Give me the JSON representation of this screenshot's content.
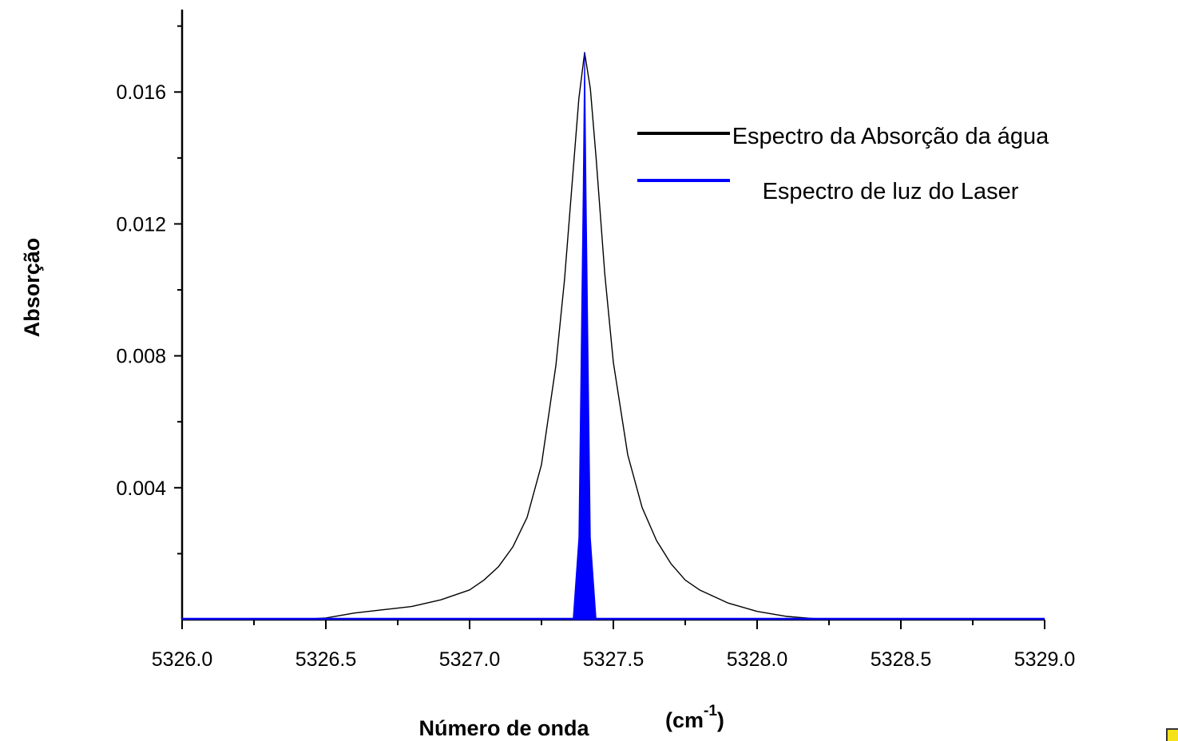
{
  "chart_data": {
    "type": "line",
    "title": "",
    "xlabel": "Número de onda",
    "xlabel_unit": "(cm",
    "xlabel_unit_sup": "-1",
    "xlabel_unit_close": ")",
    "ylabel": "Absorção",
    "xlim": [
      5326.0,
      5329.0
    ],
    "ylim": [
      0.0,
      0.0185
    ],
    "x_ticks": [
      {
        "value": 5326.0,
        "label": "5326.0"
      },
      {
        "value": 5326.5,
        "label": "5326.5"
      },
      {
        "value": 5327.0,
        "label": "5327.0"
      },
      {
        "value": 5327.5,
        "label": "5327.5"
      },
      {
        "value": 5328.0,
        "label": "5328.0"
      },
      {
        "value": 5328.5,
        "label": "5328.5"
      },
      {
        "value": 5329.0,
        "label": "5329.0"
      }
    ],
    "y_ticks": [
      {
        "value": 0.004,
        "label": "0.004"
      },
      {
        "value": 0.008,
        "label": "0.008"
      },
      {
        "value": 0.012,
        "label": "0.012"
      },
      {
        "value": 0.016,
        "label": "0.016"
      }
    ],
    "grid": false,
    "legend_position": "top-right",
    "series": [
      {
        "name": "Espectro da Absorção da água",
        "color": "#000000",
        "style": "line",
        "x": [
          5326.0,
          5326.2,
          5326.4,
          5326.5,
          5326.6,
          5326.7,
          5326.8,
          5326.9,
          5327.0,
          5327.05,
          5327.1,
          5327.15,
          5327.2,
          5327.25,
          5327.3,
          5327.33,
          5327.36,
          5327.38,
          5327.4,
          5327.42,
          5327.44,
          5327.47,
          5327.5,
          5327.55,
          5327.6,
          5327.65,
          5327.7,
          5327.75,
          5327.8,
          5327.85,
          5327.9,
          5328.0,
          5328.1,
          5328.2,
          5328.3,
          5328.5,
          5329.0
        ],
        "y": [
          0.0,
          0.0,
          0.0,
          5e-05,
          0.0002,
          0.0003,
          0.0004,
          0.0006,
          0.0009,
          0.0012,
          0.0016,
          0.0022,
          0.0031,
          0.0047,
          0.0077,
          0.0103,
          0.0136,
          0.0158,
          0.0172,
          0.0161,
          0.014,
          0.0105,
          0.0078,
          0.005,
          0.0034,
          0.0024,
          0.0017,
          0.0012,
          0.0009,
          0.0007,
          0.0005,
          0.00025,
          0.0001,
          3e-05,
          0.0,
          0.0,
          0.0
        ]
      },
      {
        "name": "Espectro de luz do Laser",
        "color": "#0000ff",
        "style": "filled-peak",
        "x": [
          5327.36,
          5327.38,
          5327.395,
          5327.4,
          5327.405,
          5327.42,
          5327.44
        ],
        "y": [
          0.0,
          0.0025,
          0.013,
          0.0172,
          0.013,
          0.0025,
          0.0
        ]
      }
    ]
  }
}
